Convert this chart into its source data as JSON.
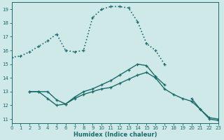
{
  "xlabel": "Humidex (Indice chaleur)",
  "bg_color": "#cfe8e8",
  "grid_color": "#b0d0d0",
  "line_color": "#1a6b6b",
  "xlim": [
    0,
    23
  ],
  "ylim": [
    10.7,
    19.5
  ],
  "yticks": [
    11,
    12,
    13,
    14,
    15,
    16,
    17,
    18,
    19
  ],
  "xticks": [
    0,
    1,
    2,
    3,
    4,
    5,
    6,
    7,
    8,
    9,
    10,
    11,
    12,
    13,
    14,
    15,
    16,
    17,
    18,
    19,
    20,
    21,
    22,
    23
  ],
  "line1_x": [
    0,
    1,
    2,
    3,
    4,
    5,
    6,
    7,
    8,
    9,
    10,
    11,
    12,
    13,
    14,
    15,
    16,
    17,
    18
  ],
  "line1_y": [
    15.5,
    15.6,
    15.9,
    16.3,
    16.7,
    17.2,
    16.0,
    15.9,
    16.0,
    18.4,
    19.0,
    19.2,
    19.2,
    19.1,
    18.1,
    16.5,
    16.0,
    15.0,
    null
  ],
  "line2_x": [
    2,
    3,
    4,
    5,
    6,
    7,
    8,
    9,
    10,
    11,
    12,
    13,
    14,
    15,
    16,
    17,
    18,
    19,
    20,
    21,
    22,
    23
  ],
  "line2_y": [
    13.0,
    13.0,
    13.0,
    12.4,
    12.1,
    12.6,
    13.0,
    13.2,
    13.5,
    13.8,
    14.2,
    14.6,
    15.0,
    14.9,
    14.1,
    13.5,
    null,
    null,
    12.5,
    11.7,
    11.1,
    11.0
  ],
  "line3_x": [
    2,
    3,
    4,
    5,
    6,
    7,
    8,
    9,
    10,
    11,
    12,
    13,
    14,
    15,
    16,
    17,
    18,
    19,
    20,
    21,
    22,
    23
  ],
  "line3_y": [
    13.0,
    13.0,
    12.5,
    12.0,
    12.1,
    12.5,
    12.8,
    13.0,
    13.2,
    13.3,
    13.6,
    13.9,
    14.2,
    14.4,
    14.0,
    13.2,
    12.8,
    12.5,
    12.3,
    11.7,
    11.0,
    10.9
  ]
}
